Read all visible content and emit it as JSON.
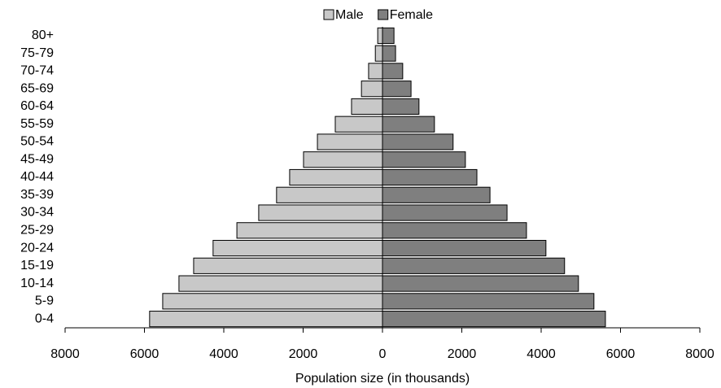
{
  "chart_data": {
    "type": "pyramid",
    "categories": [
      "0-4",
      "5-9",
      "10-14",
      "15-19",
      "20-24",
      "25-29",
      "30-34",
      "35-39",
      "40-44",
      "45-49",
      "50-54",
      "55-59",
      "60-64",
      "65-69",
      "70-74",
      "75-79",
      "80+"
    ],
    "series": [
      {
        "name": "Male",
        "color": "#c8c8c8",
        "values": [
          -5870,
          -5540,
          -5130,
          -4760,
          -4270,
          -3670,
          -3120,
          -2670,
          -2340,
          -1990,
          -1640,
          -1190,
          -780,
          -530,
          -350,
          -180,
          -120
        ]
      },
      {
        "name": "Female",
        "color": "#7f7f7f",
        "values": [
          5620,
          5330,
          4940,
          4590,
          4120,
          3630,
          3140,
          2710,
          2380,
          2090,
          1780,
          1310,
          920,
          720,
          510,
          330,
          290
        ]
      }
    ],
    "xlabel": "Population size (in thousands)",
    "xlim": [
      -8000,
      8000
    ],
    "xticks": [
      {
        "value": -8000,
        "label": "8000"
      },
      {
        "value": -6000,
        "label": "6000"
      },
      {
        "value": -4000,
        "label": "4000"
      },
      {
        "value": -2000,
        "label": "2000"
      },
      0,
      2000,
      4000,
      6000,
      8000
    ],
    "legend": "top"
  }
}
